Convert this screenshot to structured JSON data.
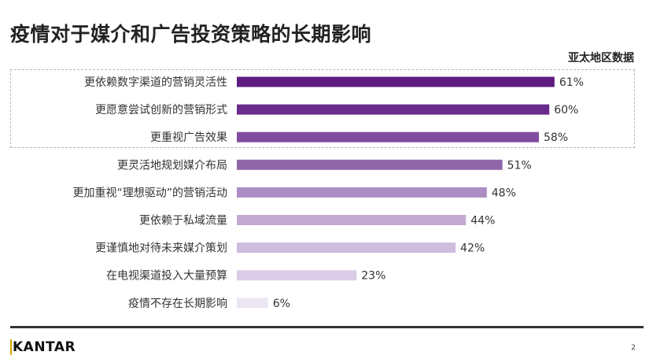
{
  "title": "疫情对于媒介和广告投资策略的长期影响",
  "subtitle": "亚太地区数据",
  "footer": {
    "logo": "KANTAR",
    "page_number": "2"
  },
  "chart_data": {
    "type": "bar",
    "orientation": "horizontal",
    "title": "疫情对于媒介和广告投资策略的长期影响",
    "xlabel": "",
    "ylabel": "",
    "xlim": [
      0,
      100
    ],
    "grid": false,
    "categories": [
      "更依赖数字渠道的营销灵活性",
      "更愿意尝试创新的营销形式",
      "更重视广告效果",
      "更灵活地规划媒介布局",
      "更加重视“理想驱动”的营销活动",
      "更依赖于私域流量",
      "更谨慎地对待未来媒介策划",
      "在电视渠道投入大量预算",
      "疫情不存在长期影响"
    ],
    "values": [
      61,
      60,
      58,
      51,
      48,
      44,
      42,
      23,
      6
    ],
    "labels": [
      "61%",
      "60%",
      "58%",
      "51%",
      "48%",
      "44%",
      "42%",
      "23%",
      "6%"
    ],
    "colors": [
      "#5e1d80",
      "#6a2b8c",
      "#804c9e",
      "#9166a9",
      "#ac8dc3",
      "#c2aad3",
      "#cebddd",
      "#dbcde7",
      "#ece6f2"
    ],
    "highlighted_top": 3
  }
}
